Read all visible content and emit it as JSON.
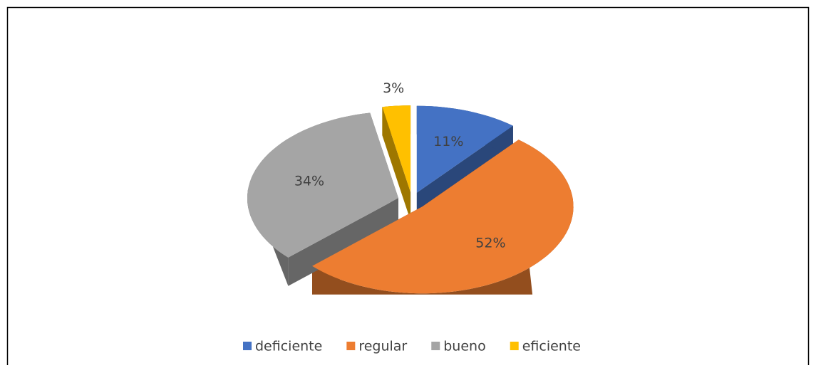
{
  "chart_data": {
    "type": "pie",
    "categories": [
      "deficiente",
      "regular",
      "bueno",
      "eficiente"
    ],
    "values": [
      11,
      52,
      34,
      3
    ],
    "value_labels": [
      "11%",
      "52%",
      "34%",
      "3%"
    ],
    "colors": [
      "#4472c4",
      "#ed7d31",
      "#a5a5a5",
      "#ffc000"
    ],
    "legend": "bottom",
    "explode": true,
    "three_d": true
  }
}
